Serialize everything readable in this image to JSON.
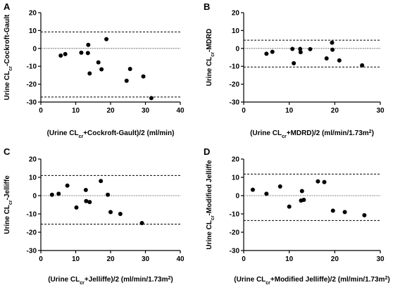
{
  "chart_data": [
    {
      "type": "scatter",
      "panel": "A",
      "xlabel": {
        "pre": "(Urine CL",
        "sub": "cr",
        "post": "+Cockroft-Gault)/2 (ml/min)",
        "sup": ""
      },
      "ylabel": {
        "pre": "Urine CL",
        "sub": "cr",
        "post": "-Cockroft-Gault"
      },
      "xlim": [
        0,
        40
      ],
      "ylim": [
        -30,
        20
      ],
      "xticks": [
        0,
        10,
        20,
        30,
        40
      ],
      "yticks": [
        -30,
        -20,
        -10,
        0,
        10,
        20
      ],
      "upper_limit": 9.2,
      "lower_limit": -27.2,
      "mean_line": 0,
      "points": [
        [
          5.7,
          -4.0
        ],
        [
          7.0,
          -3.2
        ],
        [
          11.6,
          -2.4
        ],
        [
          13.6,
          2.0
        ],
        [
          14.0,
          -14.0
        ],
        [
          13.5,
          -2.6
        ],
        [
          16.5,
          -7.8
        ],
        [
          17.4,
          -11.7
        ],
        [
          18.8,
          5.2
        ],
        [
          24.6,
          -18.1
        ],
        [
          25.6,
          -11.5
        ],
        [
          29.4,
          -15.7
        ],
        [
          31.7,
          -27.8
        ]
      ]
    },
    {
      "type": "scatter",
      "panel": "B",
      "xlabel": {
        "pre": "(Urine CL",
        "sub": "cr",
        "post": "+MDRD)/2 (ml/min/1.73m",
        "sup": "2",
        "end": ")"
      },
      "ylabel": {
        "pre": "Urine CL",
        "sub": "cr",
        "post": "-MDRD"
      },
      "xlim": [
        0,
        30
      ],
      "ylim": [
        -30,
        20
      ],
      "xticks": [
        0,
        10,
        20,
        30
      ],
      "yticks": [
        -30,
        -20,
        -10,
        0,
        10,
        20
      ],
      "upper_limit": 4.6,
      "lower_limit": -10.4,
      "mean_line": 0,
      "points": [
        [
          5.0,
          -3.0
        ],
        [
          6.3,
          -1.9
        ],
        [
          10.7,
          -0.3
        ],
        [
          11.0,
          -8.3
        ],
        [
          12.4,
          -0.3
        ],
        [
          12.5,
          -2.1
        ],
        [
          14.6,
          -0.4
        ],
        [
          18.2,
          -5.6
        ],
        [
          19.4,
          3.2
        ],
        [
          19.5,
          -0.7
        ],
        [
          21.0,
          -6.7
        ],
        [
          26.0,
          -9.5
        ]
      ]
    },
    {
      "type": "scatter",
      "panel": "C",
      "xlabel": {
        "pre": "(Urine CL",
        "sub": "cr",
        "post": "+Jelliffe)/2 (ml/min/1.73m",
        "sup": "2",
        "end": ")"
      },
      "ylabel": {
        "pre": "Urine CL",
        "sub": "cr",
        "post": "-Jelliffe"
      },
      "xlim": [
        0,
        40
      ],
      "ylim": [
        -30,
        20
      ],
      "xticks": [
        0,
        10,
        20,
        30,
        40
      ],
      "yticks": [
        -30,
        -20,
        -10,
        0,
        10,
        20
      ],
      "upper_limit": 11.0,
      "lower_limit": -15.6,
      "mean_line": 0,
      "points": [
        [
          3.2,
          0.5
        ],
        [
          5.1,
          1.0
        ],
        [
          7.6,
          5.5
        ],
        [
          10.2,
          -6.5
        ],
        [
          12.9,
          3.1
        ],
        [
          13.0,
          -3.0
        ],
        [
          14.0,
          -3.5
        ],
        [
          17.2,
          8.0
        ],
        [
          19.2,
          0.5
        ],
        [
          20.0,
          -9.0
        ],
        [
          22.8,
          -10.0
        ],
        [
          29.0,
          -15.0
        ]
      ]
    },
    {
      "type": "scatter",
      "panel": "D",
      "xlabel": {
        "pre": "(Urine CL",
        "sub": "cr",
        "post": "+Modified Jelliffe)/2 (ml/min/1.73m",
        "sup": "2",
        "end": ")"
      },
      "ylabel": {
        "pre": "Urine CL",
        "sub": "cr",
        "post": "-Modified Jelliffe"
      },
      "xlim": [
        0,
        30
      ],
      "ylim": [
        -30,
        20
      ],
      "xticks": [
        0,
        10,
        20,
        30
      ],
      "yticks": [
        -30,
        -20,
        -10,
        0,
        10,
        20
      ],
      "upper_limit": 11.8,
      "lower_limit": -13.6,
      "mean_line": 0,
      "points": [
        [
          2.0,
          3.2
        ],
        [
          5.0,
          1.0
        ],
        [
          8.0,
          5.0
        ],
        [
          10.0,
          -6.0
        ],
        [
          12.6,
          -2.7
        ],
        [
          12.8,
          2.5
        ],
        [
          13.2,
          -2.3
        ],
        [
          16.3,
          7.8
        ],
        [
          17.7,
          7.4
        ],
        [
          19.6,
          -8.2
        ],
        [
          22.2,
          -9.0
        ],
        [
          26.5,
          -10.7
        ]
      ]
    }
  ]
}
